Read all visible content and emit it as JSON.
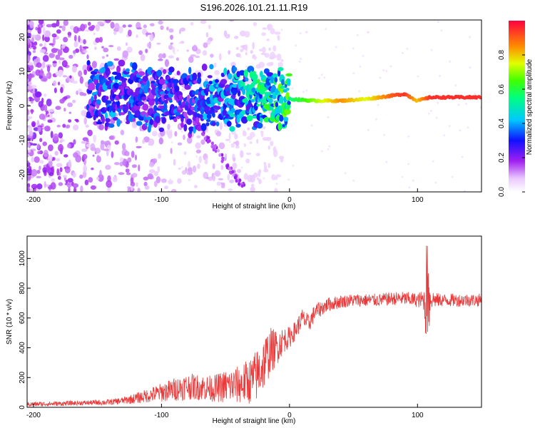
{
  "title": "S196.2026.101.21.11.R19",
  "chart_data": [
    {
      "type": "heatmap",
      "xlabel": "Height of straight line (km)",
      "ylabel": "Frequency (Hz)",
      "xlim": [
        -205,
        150
      ],
      "ylim": [
        -25,
        25
      ],
      "x_ticks": [
        -200,
        -100,
        0,
        100
      ],
      "x_tick_labels": [
        "-200",
        "-100",
        "0",
        "100"
      ],
      "y_ticks": [
        20,
        10,
        0,
        -10,
        -20
      ],
      "y_tick_labels": [
        "20",
        "10",
        "0",
        "-10",
        "-20"
      ],
      "colorbar": {
        "label": "Normalized spectral amplitude",
        "range": [
          0,
          1
        ],
        "ticks": [
          0,
          0.2,
          0.4,
          0.6,
          0.8
        ],
        "tick_labels": [
          "0.0",
          "0.2",
          "0.4",
          "0.6",
          "0.8"
        ]
      },
      "ridge": {
        "x": [
          -155,
          -140,
          -120,
          -100,
          -80,
          -60,
          -40,
          -20,
          0,
          20,
          40,
          60,
          80,
          90,
          100,
          110,
          150
        ],
        "frequency": [
          4,
          3,
          3,
          2,
          1,
          2,
          2,
          2,
          2,
          1.5,
          1.5,
          2,
          3,
          3.5,
          1.5,
          2.5,
          2.5
        ],
        "amplitude": [
          0.3,
          0.35,
          0.3,
          0.3,
          0.3,
          0.35,
          0.4,
          0.5,
          0.55,
          0.7,
          0.85,
          0.75,
          0.9,
          0.95,
          0.8,
          0.95,
          0.95
        ]
      }
    },
    {
      "type": "line",
      "xlabel": "Height of straight line (km)",
      "ylabel": "SNR (10 * v/v)",
      "xlim": [
        -205,
        150
      ],
      "ylim": [
        0,
        1150
      ],
      "x_ticks": [
        -200,
        -100,
        0,
        100
      ],
      "x_tick_labels": [
        "-200",
        "-100",
        "0",
        "100"
      ],
      "y_ticks": [
        0,
        200,
        400,
        600,
        800,
        1000
      ],
      "y_tick_labels": [
        "0",
        "200",
        "400",
        "600",
        "800",
        "1000"
      ],
      "series": [
        {
          "name": "SNR",
          "color": "#e83a3a",
          "x": [
            -205,
            -180,
            -160,
            -140,
            -130,
            -120,
            -110,
            -100,
            -90,
            -80,
            -70,
            -60,
            -50,
            -40,
            -30,
            -25,
            -20,
            -15,
            -10,
            -5,
            0,
            5,
            10,
            15,
            20,
            30,
            40,
            50,
            60,
            70,
            80,
            90,
            100,
            105,
            108,
            110,
            115,
            120,
            130,
            140,
            150
          ],
          "y": [
            20,
            25,
            30,
            35,
            45,
            60,
            80,
            100,
            120,
            140,
            135,
            125,
            140,
            150,
            180,
            220,
            300,
            380,
            400,
            450,
            470,
            520,
            600,
            560,
            640,
            690,
            710,
            720,
            720,
            720,
            730,
            730,
            720,
            720,
            600,
            730,
            720,
            720,
            720,
            720,
            720
          ],
          "spread": [
            20,
            20,
            20,
            25,
            30,
            45,
            60,
            80,
            100,
            110,
            110,
            110,
            140,
            160,
            200,
            230,
            230,
            200,
            150,
            110,
            90,
            80,
            80,
            80,
            70,
            60,
            55,
            55,
            55,
            55,
            55,
            60,
            60,
            90,
            500,
            90,
            60,
            55,
            55,
            55,
            55
          ]
        }
      ]
    }
  ]
}
